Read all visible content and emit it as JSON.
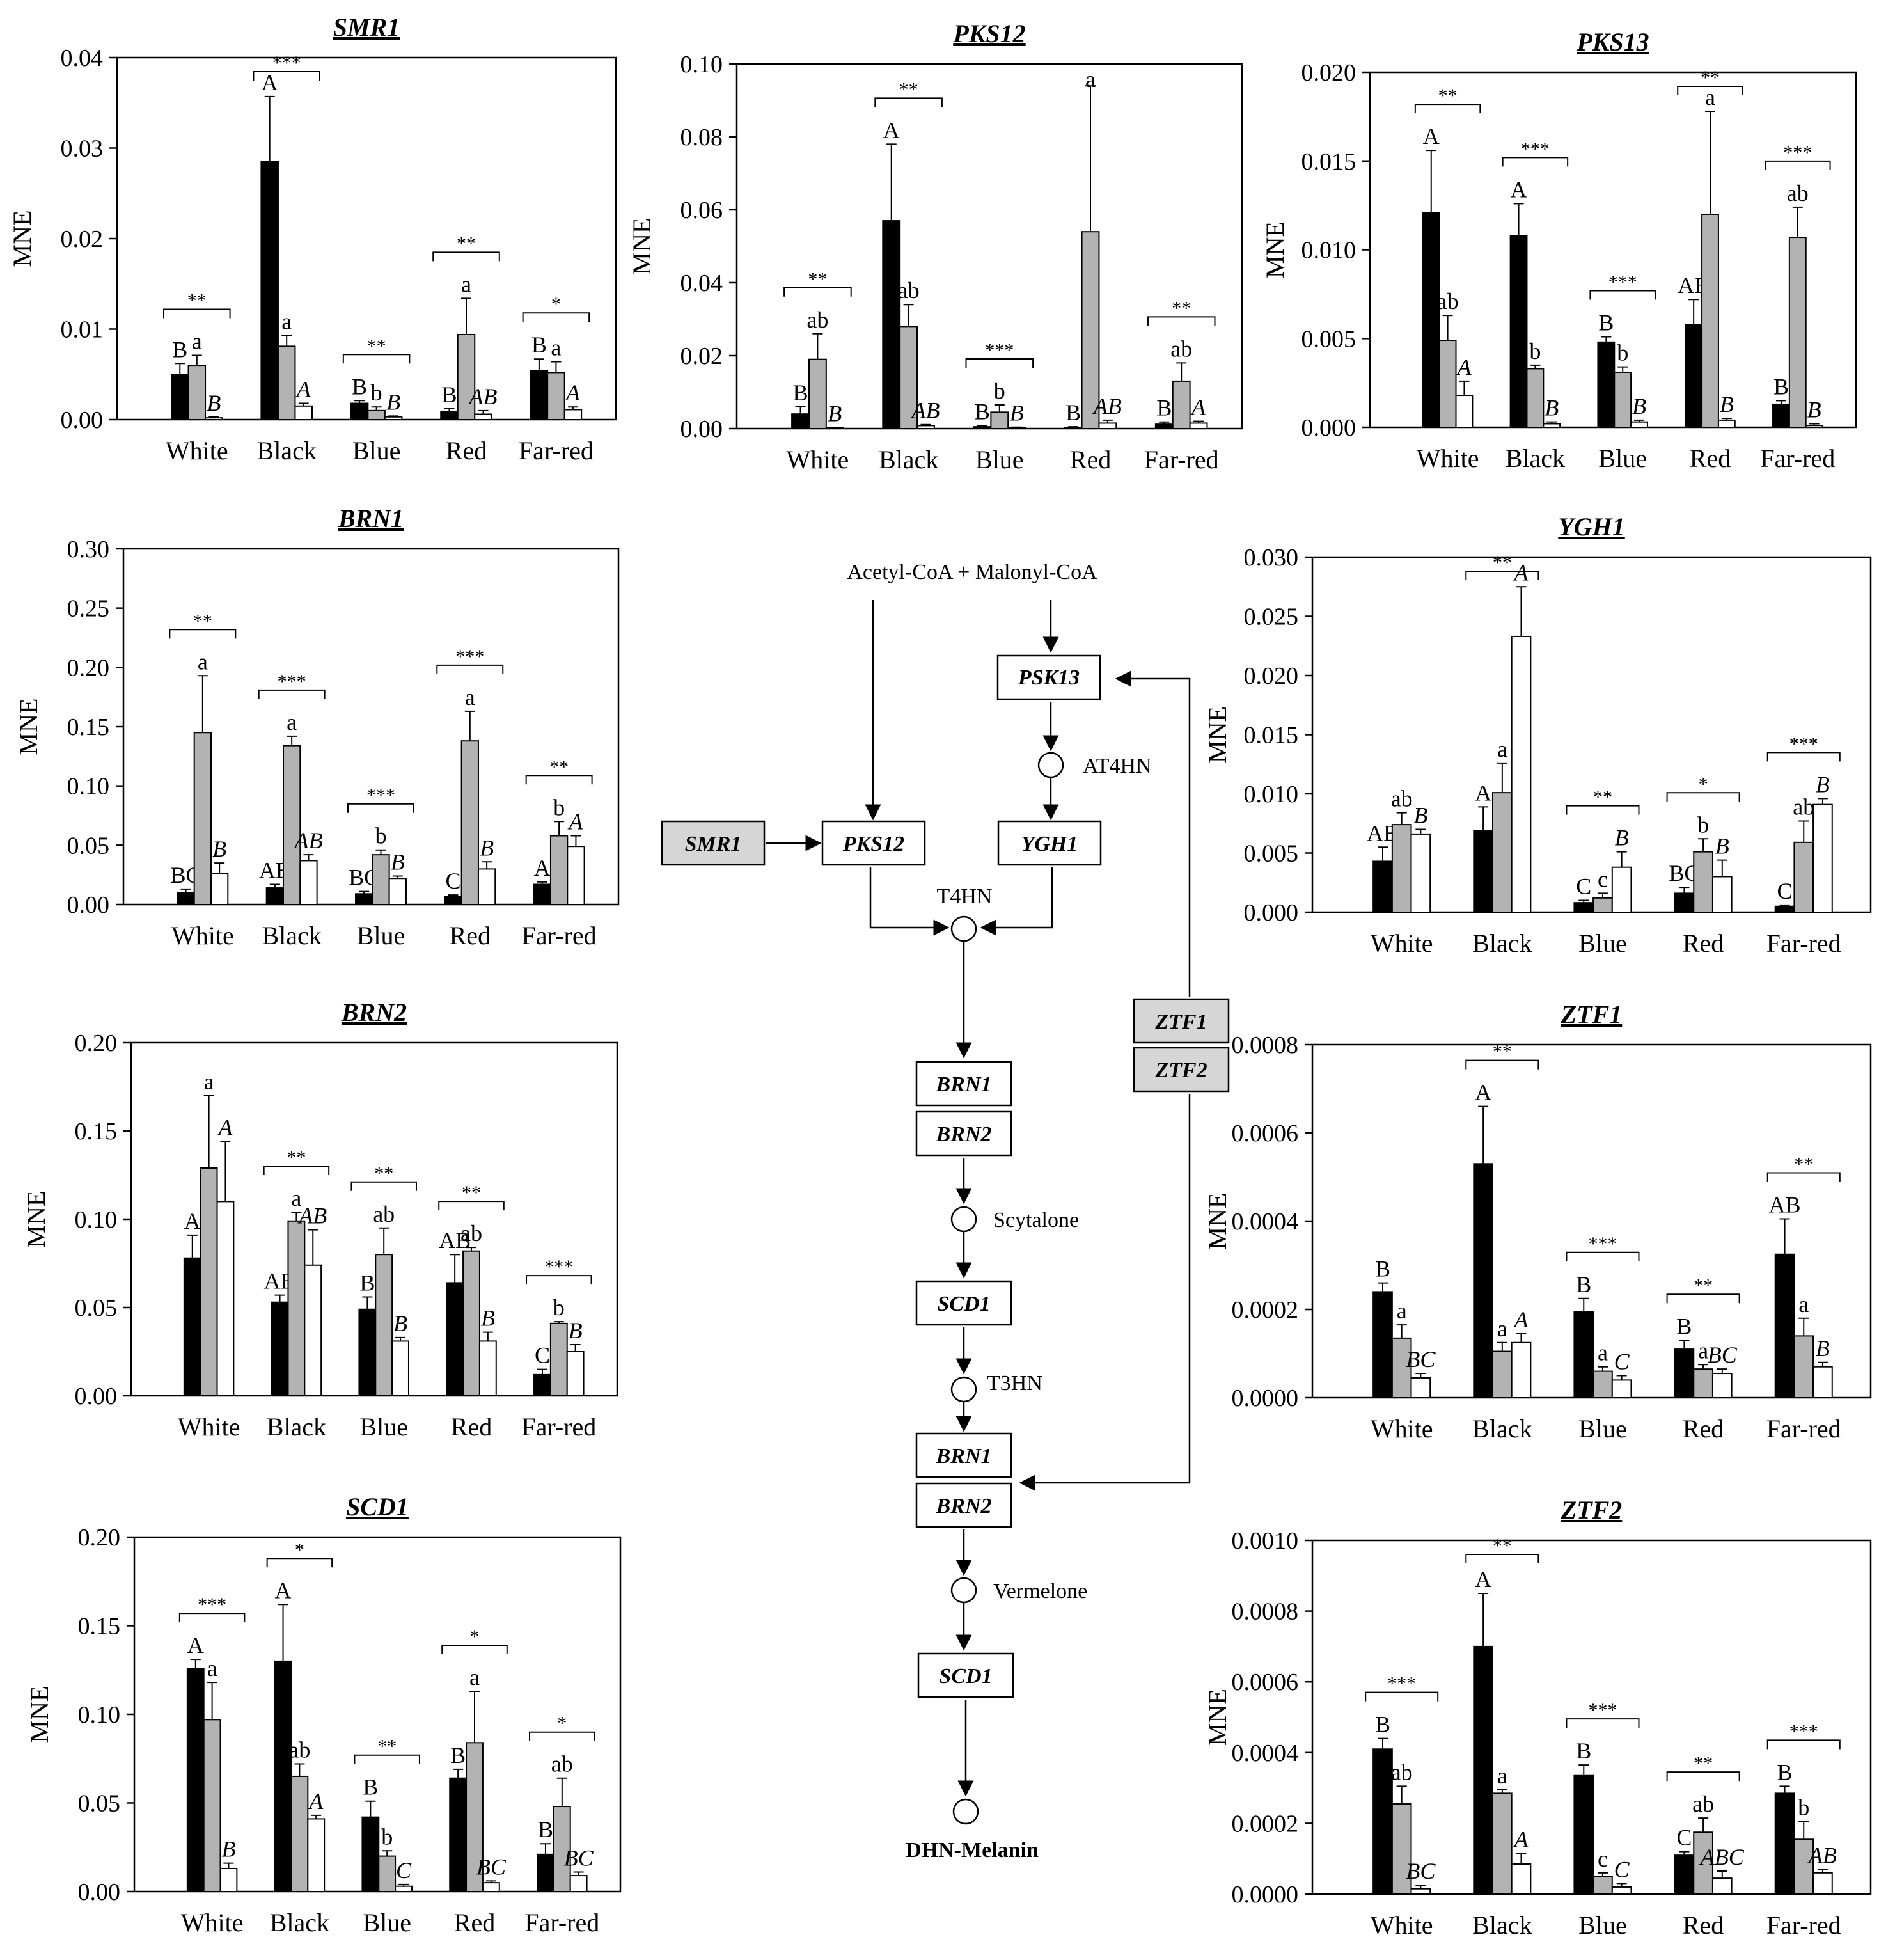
{
  "groups": [
    "White",
    "Black",
    "Blue",
    "Red",
    "Far-red"
  ],
  "y_axis_label": "MNE",
  "colors": {
    "dark": "#000000",
    "grey": "#b3b3b3",
    "light": "#ffffff"
  },
  "chart_data": [
    {
      "type": "bar",
      "title": "SMR1",
      "ylabel": "MNE",
      "ylim": [
        0,
        0.04
      ],
      "yticks": [
        "0.00",
        "0.01",
        "0.02",
        "0.03",
        "0.04"
      ],
      "categories": [
        "White",
        "Black",
        "Blue",
        "Red",
        "Far-red"
      ],
      "series": [
        {
          "name": "dark",
          "values": [
            0.005,
            0.0285,
            0.0018,
            0.0009,
            0.0054
          ],
          "errors": [
            0.0012,
            0.0072,
            0.0003,
            0.0003,
            0.0013
          ],
          "letters": [
            "B",
            "A",
            "B",
            "B",
            "B"
          ]
        },
        {
          "name": "grey",
          "values": [
            0.006,
            0.0081,
            0.001,
            0.0094,
            0.0052
          ],
          "errors": [
            0.0011,
            0.0012,
            0.0004,
            0.004,
            0.0012
          ],
          "letters": [
            "a",
            "a",
            "b",
            "a",
            "a"
          ]
        },
        {
          "name": "light",
          "values": [
            0.0002,
            0.0015,
            0.0003,
            0.0006,
            0.0011
          ],
          "errors": [
            0.0001,
            0.0003,
            0.0001,
            0.0004,
            0.0003
          ],
          "letters": [
            "B",
            "A",
            "B",
            "AB",
            "A"
          ]
        }
      ],
      "significance": [
        "**",
        "***",
        "**",
        "**",
        "*"
      ]
    },
    {
      "type": "bar",
      "title": "PKS12",
      "ylabel": "MNE",
      "ylim": [
        0,
        0.1
      ],
      "yticks": [
        "0.00",
        "0.02",
        "0.04",
        "0.06",
        "0.08",
        "0.10"
      ],
      "categories": [
        "White",
        "Black",
        "Blue",
        "Red",
        "Far-red"
      ],
      "series": [
        {
          "name": "dark",
          "values": [
            0.004,
            0.057,
            0.0005,
            0.0003,
            0.0012
          ],
          "errors": [
            0.002,
            0.021,
            0.0003,
            0.0002,
            0.0006
          ],
          "letters": [
            "B",
            "A",
            "B",
            "B",
            "B"
          ]
        },
        {
          "name": "grey",
          "values": [
            0.019,
            0.028,
            0.0045,
            0.054,
            0.013
          ],
          "errors": [
            0.007,
            0.006,
            0.002,
            0.04,
            0.005
          ],
          "letters": [
            "ab",
            "ab",
            "b",
            "a",
            "ab"
          ]
        },
        {
          "name": "light",
          "values": [
            0.0002,
            0.0008,
            0.0003,
            0.0015,
            0.0015
          ],
          "errors": [
            0.0001,
            0.0003,
            0.0001,
            0.0008,
            0.0005
          ],
          "letters": [
            "B",
            "AB",
            "B",
            "AB",
            "A"
          ]
        }
      ],
      "significance": [
        "**",
        "**",
        "***",
        "",
        "**"
      ]
    },
    {
      "type": "bar",
      "title": "PKS13",
      "ylabel": "MNE",
      "ylim": [
        0,
        0.02
      ],
      "yticks": [
        "0.000",
        "0.005",
        "0.010",
        "0.015",
        "0.020"
      ],
      "categories": [
        "White",
        "Black",
        "Blue",
        "Red",
        "Far-red"
      ],
      "series": [
        {
          "name": "dark",
          "values": [
            0.0121,
            0.0108,
            0.0048,
            0.0058,
            0.0013
          ],
          "errors": [
            0.0035,
            0.0018,
            0.0003,
            0.0014,
            0.0002
          ],
          "letters": [
            "A",
            "A",
            "B",
            "AB",
            "B"
          ]
        },
        {
          "name": "grey",
          "values": [
            0.0049,
            0.0033,
            0.0031,
            0.012,
            0.0107
          ],
          "errors": [
            0.0014,
            0.0002,
            0.0003,
            0.0058,
            0.0017
          ],
          "letters": [
            "ab",
            "b",
            "b",
            "a",
            "ab"
          ]
        },
        {
          "name": "light",
          "values": [
            0.0018,
            0.0002,
            0.0003,
            0.0004,
            0.0001
          ],
          "errors": [
            0.0008,
            0.0001,
            0.0001,
            0.0001,
            0.0001
          ],
          "letters": [
            "A",
            "B",
            "B",
            "B",
            "B"
          ]
        }
      ],
      "significance": [
        "**",
        "***",
        "***",
        "**",
        "***"
      ]
    },
    {
      "type": "bar",
      "title": "BRN1",
      "ylabel": "MNE",
      "ylim": [
        0,
        0.3
      ],
      "yticks": [
        "0.00",
        "0.05",
        "0.10",
        "0.15",
        "0.20",
        "0.25",
        "0.30"
      ],
      "categories": [
        "White",
        "Black",
        "Blue",
        "Red",
        "Far-red"
      ],
      "series": [
        {
          "name": "dark",
          "values": [
            0.01,
            0.014,
            0.009,
            0.007,
            0.017
          ],
          "errors": [
            0.003,
            0.003,
            0.002,
            0.001,
            0.002
          ],
          "letters": [
            "BC",
            "AB",
            "BC",
            "C",
            "A"
          ]
        },
        {
          "name": "grey",
          "values": [
            0.145,
            0.134,
            0.042,
            0.138,
            0.058
          ],
          "errors": [
            0.048,
            0.008,
            0.004,
            0.025,
            0.012
          ],
          "letters": [
            "a",
            "a",
            "b",
            "a",
            "b"
          ]
        },
        {
          "name": "light",
          "values": [
            0.026,
            0.037,
            0.022,
            0.03,
            0.049
          ],
          "errors": [
            0.009,
            0.005,
            0.002,
            0.006,
            0.009
          ],
          "letters": [
            "B",
            "AB",
            "B",
            "B",
            "A"
          ]
        }
      ],
      "significance": [
        "**",
        "***",
        "***",
        "***",
        "**"
      ]
    },
    {
      "type": "bar",
      "title": "YGH1",
      "ylabel": "MNE",
      "ylim": [
        0,
        0.03
      ],
      "yticks": [
        "0.000",
        "0.005",
        "0.010",
        "0.015",
        "0.020",
        "0.025",
        "0.030"
      ],
      "categories": [
        "White",
        "Black",
        "Blue",
        "Red",
        "Far-red"
      ],
      "series": [
        {
          "name": "dark",
          "values": [
            0.0043,
            0.0069,
            0.0008,
            0.0016,
            0.0005
          ],
          "errors": [
            0.0012,
            0.002,
            0.0002,
            0.0005,
            0.0001
          ],
          "letters": [
            "AB",
            "A",
            "C",
            "BC",
            "C"
          ]
        },
        {
          "name": "grey",
          "values": [
            0.0074,
            0.0101,
            0.0012,
            0.0051,
            0.0059
          ],
          "errors": [
            0.001,
            0.0025,
            0.0004,
            0.0011,
            0.0018
          ],
          "letters": [
            "ab",
            "a",
            "c",
            "b",
            "ab"
          ]
        },
        {
          "name": "light",
          "values": [
            0.0066,
            0.0233,
            0.0038,
            0.003,
            0.0091
          ],
          "errors": [
            0.0004,
            0.0042,
            0.0013,
            0.0014,
            0.0005
          ],
          "letters": [
            "B",
            "A",
            "B",
            "B",
            "B"
          ]
        }
      ],
      "significance": [
        "",
        "**",
        "**",
        "*",
        "***"
      ]
    },
    {
      "type": "bar",
      "title": "BRN2",
      "ylabel": "MNE",
      "ylim": [
        0,
        0.2
      ],
      "yticks": [
        "0.00",
        "0.05",
        "0.10",
        "0.15",
        "0.20"
      ],
      "categories": [
        "White",
        "Black",
        "Blue",
        "Red",
        "Far-red"
      ],
      "series": [
        {
          "name": "dark",
          "values": [
            0.078,
            0.053,
            0.049,
            0.064,
            0.012
          ],
          "errors": [
            0.013,
            0.004,
            0.007,
            0.016,
            0.003
          ],
          "letters": [
            "A",
            "AB",
            "B",
            "AB",
            "C"
          ]
        },
        {
          "name": "grey",
          "values": [
            0.129,
            0.099,
            0.08,
            0.082,
            0.041
          ],
          "errors": [
            0.041,
            0.005,
            0.015,
            0.002,
            0.001
          ],
          "letters": [
            "a",
            "a",
            "ab",
            "ab",
            "b"
          ]
        },
        {
          "name": "light",
          "values": [
            0.11,
            0.074,
            0.031,
            0.031,
            0.025
          ],
          "errors": [
            0.034,
            0.02,
            0.002,
            0.005,
            0.004
          ],
          "letters": [
            "A",
            "AB",
            "B",
            "B",
            "B"
          ]
        }
      ],
      "significance": [
        "",
        "**",
        "**",
        "**",
        "***"
      ]
    },
    {
      "type": "bar",
      "title": "ZTF1",
      "ylabel": "MNE",
      "ylim": [
        0,
        0.0008
      ],
      "yticks": [
        "0.0000",
        "0.0002",
        "0.0004",
        "0.0006",
        "0.0008"
      ],
      "categories": [
        "White",
        "Black",
        "Blue",
        "Red",
        "Far-red"
      ],
      "series": [
        {
          "name": "dark",
          "values": [
            0.00024,
            0.00053,
            0.000195,
            0.00011,
            0.000325
          ],
          "errors": [
            2e-05,
            0.00013,
            3e-05,
            2e-05,
            8e-05
          ],
          "letters": [
            "B",
            "A",
            "B",
            "B",
            "AB"
          ]
        },
        {
          "name": "grey",
          "values": [
            0.000135,
            0.000105,
            6e-05,
            6.5e-05,
            0.00014
          ],
          "errors": [
            3e-05,
            2e-05,
            1e-05,
            1e-05,
            4e-05
          ],
          "letters": [
            "a",
            "a",
            "a",
            "a",
            "a"
          ]
        },
        {
          "name": "light",
          "values": [
            4.5e-05,
            0.000125,
            4e-05,
            5.5e-05,
            7e-05
          ],
          "errors": [
            1e-05,
            2e-05,
            1e-05,
            1e-05,
            1e-05
          ],
          "letters": [
            "BC",
            "A",
            "C",
            "BC",
            "B"
          ]
        }
      ],
      "significance": [
        "",
        "**",
        "***",
        "**",
        "**"
      ]
    },
    {
      "type": "bar",
      "title": "SCD1",
      "ylabel": "MNE",
      "ylim": [
        0,
        0.2
      ],
      "yticks": [
        "0.00",
        "0.05",
        "0.10",
        "0.15",
        "0.20"
      ],
      "categories": [
        "White",
        "Black",
        "Blue",
        "Red",
        "Far-red"
      ],
      "series": [
        {
          "name": "dark",
          "values": [
            0.126,
            0.13,
            0.042,
            0.064,
            0.021
          ],
          "errors": [
            0.005,
            0.032,
            0.009,
            0.005,
            0.006
          ],
          "letters": [
            "A",
            "A",
            "B",
            "B",
            "B"
          ]
        },
        {
          "name": "grey",
          "values": [
            0.097,
            0.065,
            0.02,
            0.084,
            0.048
          ],
          "errors": [
            0.021,
            0.007,
            0.003,
            0.029,
            0.016
          ],
          "letters": [
            "a",
            "ab",
            "b",
            "a",
            "ab"
          ]
        },
        {
          "name": "light",
          "values": [
            0.013,
            0.041,
            0.003,
            0.005,
            0.009
          ],
          "errors": [
            0.003,
            0.002,
            0.001,
            0.001,
            0.002
          ],
          "letters": [
            "B",
            "A",
            "C",
            "BC",
            "BC"
          ]
        }
      ],
      "significance": [
        "***",
        "*",
        "**",
        "*",
        "*"
      ]
    },
    {
      "type": "bar",
      "title": "ZTF2",
      "ylabel": "MNE",
      "ylim": [
        0,
        0.001
      ],
      "yticks": [
        "0.0000",
        "0.0002",
        "0.0004",
        "0.0006",
        "0.0008",
        "0.0010"
      ],
      "categories": [
        "White",
        "Black",
        "Blue",
        "Red",
        "Far-red"
      ],
      "series": [
        {
          "name": "dark",
          "values": [
            0.00041,
            0.0007,
            0.000335,
            0.00011,
            0.000285
          ],
          "errors": [
            3e-05,
            0.00015,
            3e-05,
            1e-05,
            2e-05
          ],
          "letters": [
            "B",
            "A",
            "B",
            "C",
            "B"
          ]
        },
        {
          "name": "grey",
          "values": [
            0.000255,
            0.000285,
            5e-05,
            0.000175,
            0.000155
          ],
          "errors": [
            5e-05,
            1e-05,
            1e-05,
            4e-05,
            5e-05
          ],
          "letters": [
            "ab",
            "a",
            "c",
            "ab",
            "b"
          ]
        },
        {
          "name": "light",
          "values": [
            1.5e-05,
            8.5e-05,
            2e-05,
            4.5e-05,
            6e-05
          ],
          "errors": [
            1e-05,
            3e-05,
            1e-05,
            2e-05,
            1e-05
          ],
          "letters": [
            "BC",
            "A",
            "C",
            "ABC",
            "AB"
          ]
        }
      ],
      "significance": [
        "***",
        "**",
        "***",
        "**",
        "***"
      ]
    }
  ],
  "pathway": {
    "start": "Acetyl-CoA + Malonyl-CoA",
    "end": "DHN-Melanin",
    "genes": {
      "PSK13": "PSK13",
      "SMR1": "SMR1",
      "PKS12": "PKS12",
      "YGH1": "YGH1",
      "ZTF1": "ZTF1",
      "ZTF2": "ZTF2",
      "BRN1": "BRN1",
      "BRN2": "BRN2",
      "SCD1": "SCD1"
    },
    "intermediates": {
      "AT4HN": "AT4HN",
      "T4HN": "T4HN",
      "Scytalone": "Scytalone",
      "T3HN": "T3HN",
      "Vermelone": "Vermelone"
    }
  }
}
